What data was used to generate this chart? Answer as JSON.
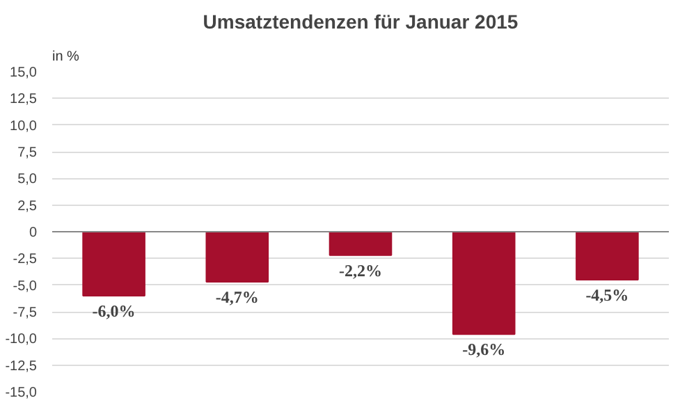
{
  "chart_data": {
    "type": "bar",
    "title": "Umsatztendenzen für Januar 2015",
    "ylabel": "in %",
    "categories": [
      null,
      null,
      null,
      null,
      null
    ],
    "values": [
      -6.0,
      -4.7,
      -2.2,
      -9.6,
      -4.5
    ],
    "color": "#a50f2d",
    "value_labels": [
      "-6,0%",
      "-4,7%",
      "-2,2%",
      "-9,6%",
      "-4,5%"
    ],
    "ylim": [
      -15,
      15
    ],
    "yticks": [
      {
        "value": -15,
        "label": "-15,0"
      },
      {
        "value": -12.5,
        "label": "-12,5"
      },
      {
        "value": -10,
        "label": "-10,0"
      },
      {
        "value": -7.5,
        "label": "-7,5"
      },
      {
        "value": -5,
        "label": "-5,0"
      },
      {
        "value": -2.5,
        "label": "-2,5"
      },
      {
        "value": 0,
        "label": "0"
      },
      {
        "value": 2.5,
        "label": "2,5"
      },
      {
        "value": 5,
        "label": "5,0"
      },
      {
        "value": 7.5,
        "label": "7,5"
      },
      {
        "value": 10,
        "label": "10,0"
      },
      {
        "value": 12.5,
        "label": "12,5"
      },
      {
        "value": 15,
        "label": "15,0"
      }
    ],
    "grid": "y"
  }
}
